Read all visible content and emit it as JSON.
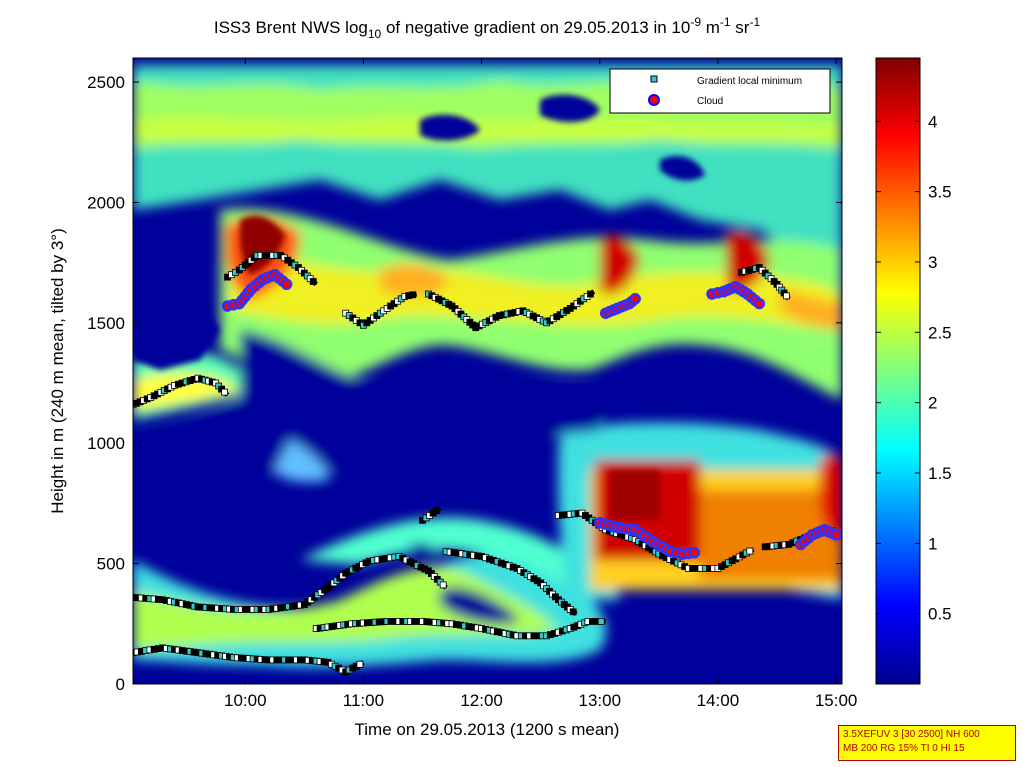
{
  "chart_data": {
    "type": "heatmap",
    "title": {
      "prefix": "ISS3 Brent NWS log",
      "sub1": "10",
      "mid": " of negative gradient on 29.05.2013 in 10",
      "sup1": "-9",
      "m_unit": " m",
      "sup2": "-1",
      "sr_unit": " sr",
      "sup3": "-1"
    },
    "xlabel": "Time on 29.05.2013 (1200 s mean)",
    "ylabel": "Height in m (240 m mean, tilted by 3°)",
    "x_range": [
      9.05,
      15.05
    ],
    "y_range": [
      0,
      2600
    ],
    "x_ticks": [
      {
        "value": 10,
        "label": "10:00"
      },
      {
        "value": 11,
        "label": "11:00"
      },
      {
        "value": 12,
        "label": "12:00"
      },
      {
        "value": 13,
        "label": "13:00"
      },
      {
        "value": 14,
        "label": "14:00"
      },
      {
        "value": 15,
        "label": "15:00"
      }
    ],
    "y_ticks": [
      {
        "value": 0,
        "label": "0"
      },
      {
        "value": 500,
        "label": "500"
      },
      {
        "value": 1000,
        "label": "1000"
      },
      {
        "value": 1500,
        "label": "1500"
      },
      {
        "value": 2000,
        "label": "2000"
      },
      {
        "value": 2500,
        "label": "2500"
      }
    ],
    "colorbar": {
      "range": [
        0,
        4.45
      ],
      "ticks": [
        {
          "value": 0.5,
          "label": "0.5"
        },
        {
          "value": 1,
          "label": "1"
        },
        {
          "value": 1.5,
          "label": "1.5"
        },
        {
          "value": 2,
          "label": "2"
        },
        {
          "value": 2.5,
          "label": "2.5"
        },
        {
          "value": 3,
          "label": "3"
        },
        {
          "value": 3.5,
          "label": "3.5"
        },
        {
          "value": 4,
          "label": "4"
        }
      ]
    },
    "legend": {
      "placement": "top-right",
      "entries": [
        {
          "label": "Gradient local minimum",
          "marker": "square",
          "color": "#33cccc"
        },
        {
          "label": "Cloud",
          "marker": "circle",
          "color": "#ff0000"
        }
      ]
    },
    "series": [
      {
        "x": [
          9.05,
          9.2,
          9.4,
          9.6,
          9.75,
          9.85
        ],
        "y": [
          1160,
          1190,
          1240,
          1270,
          1250,
          1200
        ]
      },
      {
        "x": [
          9.05,
          9.3,
          9.6,
          9.9,
          10.2,
          10.5,
          10.7,
          10.85,
          11.05,
          11.3,
          11.55,
          11.7
        ],
        "y": [
          360,
          350,
          320,
          310,
          310,
          330,
          400,
          460,
          510,
          530,
          470,
          400
        ]
      },
      {
        "x": [
          9.05,
          9.3,
          9.6,
          9.9,
          10.2,
          10.5,
          10.7,
          10.85,
          11.0
        ],
        "y": [
          130,
          150,
          130,
          110,
          100,
          100,
          90,
          50,
          90
        ]
      },
      {
        "x": [
          10.6,
          10.9,
          11.2,
          11.5,
          11.75,
          12.0,
          12.3,
          12.55,
          12.75,
          12.9,
          13.05
        ],
        "y": [
          230,
          250,
          260,
          260,
          250,
          230,
          200,
          200,
          230,
          260,
          260
        ]
      },
      {
        "x": [
          11.5,
          11.65
        ],
        "y": [
          680,
          730
        ]
      },
      {
        "x": [
          11.7,
          12.0,
          12.3,
          12.5,
          12.65,
          12.8
        ],
        "y": [
          550,
          530,
          480,
          420,
          350,
          290
        ]
      },
      {
        "x": [
          12.65,
          12.85,
          13.05,
          13.3,
          13.5,
          13.75,
          14.0,
          14.3
        ],
        "y": [
          700,
          710,
          640,
          600,
          540,
          480,
          480,
          560
        ]
      },
      {
        "x": [
          14.4,
          14.6,
          14.8,
          15.0
        ],
        "y": [
          570,
          580,
          620,
          640
        ]
      },
      {
        "x": [
          9.85,
          9.95,
          10.1,
          10.3,
          10.45,
          10.6
        ],
        "y": [
          1690,
          1720,
          1780,
          1780,
          1730,
          1660
        ]
      },
      {
        "x": [
          10.85,
          11.0,
          11.2,
          11.35,
          11.45
        ],
        "y": [
          1540,
          1490,
          1560,
          1610,
          1620
        ]
      },
      {
        "x": [
          11.55,
          11.75,
          11.95,
          12.15,
          12.35,
          12.55,
          12.75,
          12.95
        ],
        "y": [
          1620,
          1570,
          1480,
          1530,
          1550,
          1500,
          1560,
          1630
        ]
      },
      {
        "x": [
          14.2,
          14.35,
          14.5,
          14.6
        ],
        "y": [
          1710,
          1730,
          1660,
          1600
        ]
      }
    ],
    "clouds": [
      {
        "x": [
          9.85,
          9.95,
          10.05,
          10.15,
          10.25,
          10.35
        ],
        "y": [
          1570,
          1580,
          1640,
          1680,
          1700,
          1660
        ]
      },
      {
        "x": [
          13.05,
          13.15,
          13.25,
          13.3
        ],
        "y": [
          1540,
          1560,
          1580,
          1600
        ]
      },
      {
        "x": [
          13.95,
          14.05,
          14.15,
          14.25,
          14.35
        ],
        "y": [
          1620,
          1630,
          1650,
          1620,
          1580
        ]
      },
      {
        "x": [
          13.0,
          13.15,
          13.3,
          13.45,
          13.6,
          13.7,
          13.8
        ],
        "y": [
          670,
          650,
          640,
          590,
          550,
          540,
          545
        ]
      },
      {
        "x": [
          14.7,
          14.8,
          14.9,
          15.0
        ],
        "y": [
          580,
          620,
          640,
          620
        ]
      }
    ],
    "info_box": [
      "3.5XEFUV 3 [30 2500] NH 600",
      "MB 200 RG 15% TI 0 HI 15"
    ]
  }
}
